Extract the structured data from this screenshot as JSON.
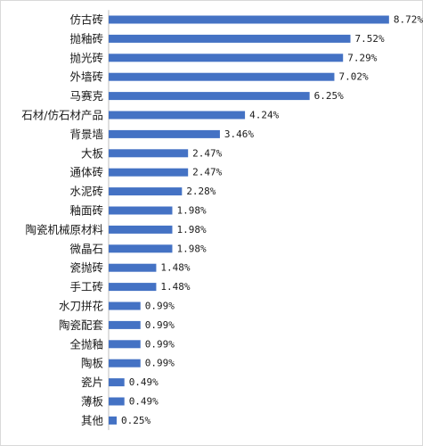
{
  "chart_data": {
    "type": "bar",
    "orientation": "horizontal",
    "title": "",
    "xlabel": "",
    "ylabel": "",
    "grid": false,
    "legend": "none",
    "bar_color": "#4472C4",
    "xlim": [
      0,
      9.5
    ],
    "categories": [
      "仿古砖",
      "抛釉砖",
      "抛光砖",
      "外墙砖",
      "马赛克",
      "石材/仿石材产品",
      "背景墙",
      "大板",
      "通体砖",
      "水泥砖",
      "釉面砖",
      "陶瓷机械原材料",
      "微晶石",
      "瓷抛砖",
      "手工砖",
      "水刀拼花",
      "陶瓷配套",
      "全抛釉",
      "陶板",
      "瓷片",
      "薄板",
      "其他"
    ],
    "values": [
      8.72,
      7.52,
      7.29,
      7.02,
      6.25,
      4.24,
      3.46,
      2.47,
      2.47,
      2.28,
      1.98,
      1.98,
      1.98,
      1.48,
      1.48,
      0.99,
      0.99,
      0.99,
      0.99,
      0.49,
      0.49,
      0.25
    ],
    "value_labels": [
      "8.72%",
      "7.52%",
      "7.29%",
      "7.02%",
      "6.25%",
      "4.24%",
      "3.46%",
      "2.47%",
      "2.47%",
      "2.28%",
      "1.98%",
      "1.98%",
      "1.98%",
      "1.48%",
      "1.48%",
      "0.99%",
      "0.99%",
      "0.99%",
      "0.99%",
      "0.49%",
      "0.49%",
      "0.25%"
    ]
  }
}
